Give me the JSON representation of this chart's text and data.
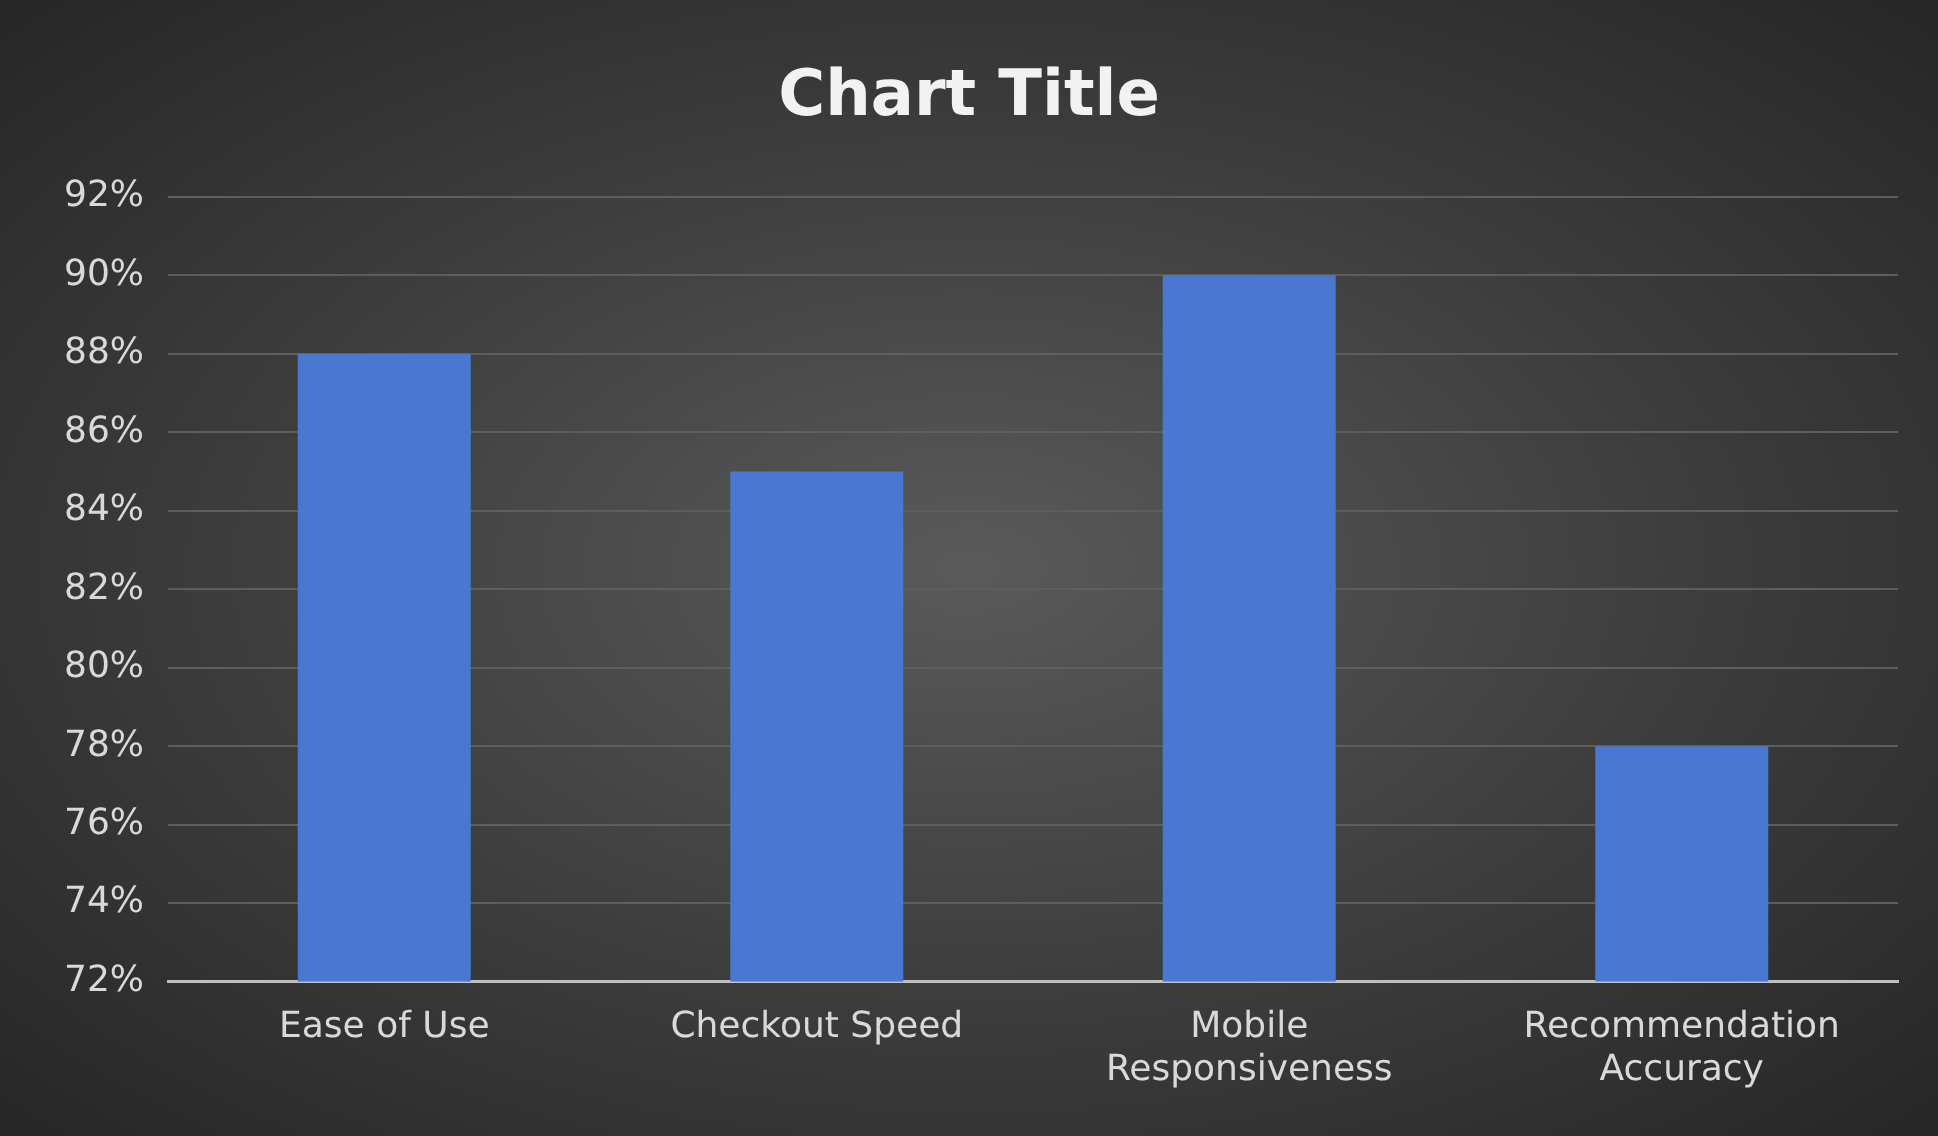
{
  "chart_data": {
    "type": "bar",
    "title": "Chart Title",
    "categories": [
      "Ease of Use",
      "Checkout Speed",
      "Mobile Responsiveness",
      "Recommendation Accuracy"
    ],
    "values": [
      88,
      85,
      90,
      78
    ],
    "color": "#4a78d0",
    "ylim": [
      72,
      92
    ],
    "yticks": [
      {
        "value": 72,
        "label": "72%"
      },
      {
        "value": 74,
        "label": "74%"
      },
      {
        "value": 76,
        "label": "76%"
      },
      {
        "value": 78,
        "label": "78%"
      },
      {
        "value": 80,
        "label": "80%"
      },
      {
        "value": 82,
        "label": "82%"
      },
      {
        "value": 84,
        "label": "84%"
      },
      {
        "value": 86,
        "label": "86%"
      },
      {
        "value": 88,
        "label": "88%"
      },
      {
        "value": 90,
        "label": "90%"
      },
      {
        "value": 92,
        "label": "92%"
      }
    ],
    "grid": "y",
    "legend": false
  }
}
